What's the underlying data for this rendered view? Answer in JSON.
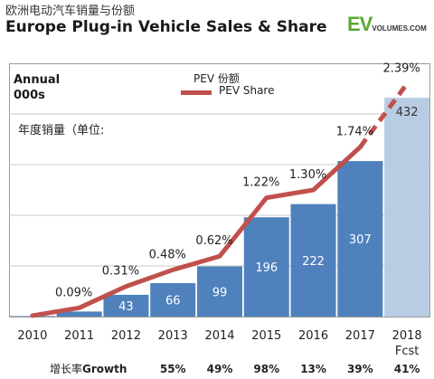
{
  "header": {
    "title_zh": "欧洲电动汽车销量与份额",
    "title_en": "Europe Plug-in Vehicle Sales & Share",
    "logo_main": "EV",
    "logo_sub": "VOLUMES.COM"
  },
  "colors": {
    "bar": "#4f81bd",
    "bar_forecast": "#b8cce4",
    "line": "#c0504d"
  },
  "chart_data": {
    "type": "bar",
    "ylabel": "Annual\n000s",
    "ylabel_zh": "年度销量（单位:",
    "categories": [
      "2010",
      "2011",
      "2012",
      "2013",
      "2014",
      "2015",
      "2016",
      "2017",
      "2018"
    ],
    "category_sublabels": [
      "",
      "",
      "",
      "",
      "",
      "",
      "",
      "",
      "Fcst"
    ],
    "series": [
      {
        "name": "",
        "type": "bar",
        "values": [
          1,
          10,
          43,
          66,
          99,
          196,
          222,
          307,
          432
        ],
        "labels": [
          "",
          "",
          "43",
          "66",
          "99",
          "196",
          "222",
          "307",
          "432"
        ],
        "forecast_index": 8
      },
      {
        "name": "PEV Share",
        "name_zh": "PEV 份额",
        "type": "line",
        "unit": "%",
        "values": [
          0.01,
          0.09,
          0.31,
          0.48,
          0.62,
          1.22,
          1.3,
          1.74,
          2.39
        ],
        "labels": [
          "",
          "0.09%",
          "0.31%",
          "0.48%",
          "0.62%",
          "1.22%",
          "1.30%",
          "1.74%",
          "2.39%"
        ],
        "forecast_from_index": 7
      }
    ],
    "ylim_bars": [
      0,
      500
    ],
    "ylim_share": [
      0,
      2.6
    ],
    "growth": {
      "label_zh": "增长率",
      "label_en": "Growth",
      "values": [
        "",
        "",
        "",
        "55%",
        "49%",
        "98%",
        "13%",
        "39%",
        "41%"
      ]
    }
  }
}
